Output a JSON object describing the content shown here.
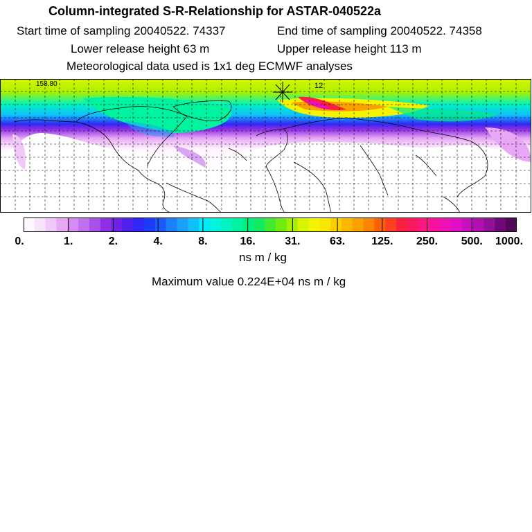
{
  "header": {
    "title": "Column-integrated S-R-Relationship for ASTAR-040522a",
    "start_time": "Start time of sampling 20040522. 74337",
    "end_time": "End time of sampling 20040522. 74358",
    "lower_height": "Lower release height   63 m",
    "upper_height": "Upper release height  113 m",
    "met_data": "Meteorological data used is 1x1 deg ECMWF analyses"
  },
  "map": {
    "corner_label": "158.80",
    "receptor_label": "12",
    "projection": "global lat-lon, northern hemisphere band",
    "gridlines": "dashed"
  },
  "colorbar": {
    "tick_labels": [
      "0.",
      "1.",
      "2.",
      "4.",
      "8.",
      "16.",
      "31.",
      "63.",
      "125.",
      "250.",
      "500.",
      "1000."
    ],
    "unit_label": "ns m / kg",
    "colors": [
      "#fff6ff",
      "#f8e2fc",
      "#f0c8fa",
      "#e8a8f6",
      "#d68af2",
      "#c070ee",
      "#a850ea",
      "#9030e6",
      "#7020e8",
      "#5020ee",
      "#3028f4",
      "#1a3cf8",
      "#1a5cfa",
      "#1a80fc",
      "#1aa0fc",
      "#10c0fc",
      "#00eaf8",
      "#00f4e0",
      "#00f4c0",
      "#00f4a0",
      "#00f080",
      "#10ec60",
      "#40ea30",
      "#70ec10",
      "#a8f000",
      "#d8f400",
      "#f4f400",
      "#f8e800",
      "#fcd000",
      "#fcb800",
      "#fca000",
      "#fc8400",
      "#fc6000",
      "#fc4020",
      "#fc2040",
      "#fc1860",
      "#fc1880",
      "#f810a0",
      "#f010b8",
      "#e010c8",
      "#c810c0",
      "#b010b0",
      "#901098",
      "#700878",
      "#500858"
    ]
  },
  "max_value": "Maximum value  0.224E+04 ns m / kg"
}
